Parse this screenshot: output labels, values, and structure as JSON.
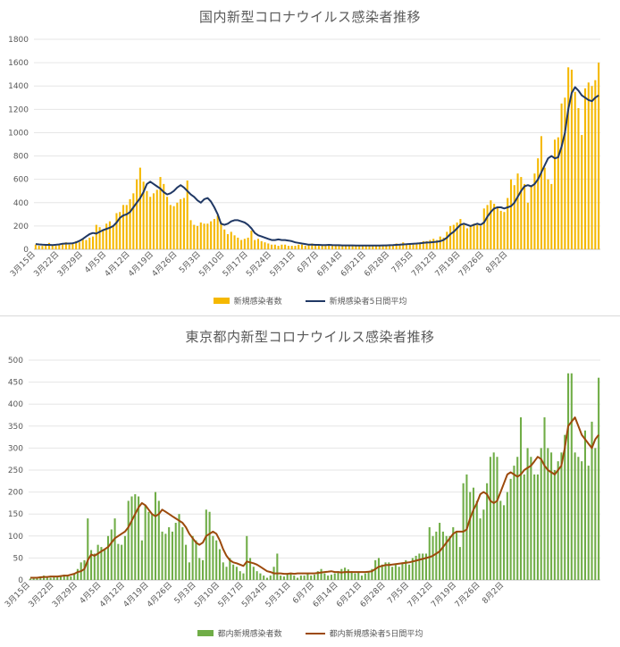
{
  "chart_data": [
    {
      "type": "bar",
      "title": "国内新型コロナウイルス感染者推移",
      "x_tick_labels": [
        "3月15日",
        "3月22日",
        "3月29日",
        "4月5日",
        "4月12日",
        "4月19日",
        "4月26日",
        "5月3日",
        "5月10日",
        "5月17日",
        "5月24日",
        "5月31日",
        "6月7日",
        "6月14日",
        "6月21日",
        "6月28日",
        "7月5日",
        "7月12日",
        "7月19日",
        "7月26日",
        "8月2日"
      ],
      "y_ticks": [
        0,
        200,
        400,
        600,
        800,
        1000,
        1200,
        1400,
        1600,
        1800
      ],
      "ylim": [
        0,
        1800
      ],
      "legend_position": "bottom",
      "grid": true,
      "colors": {
        "bars": "#f5b800",
        "line": "#203864"
      },
      "series": [
        {
          "name": "新規感染者数",
          "kind": "bar",
          "values": [
            40,
            30,
            30,
            45,
            55,
            35,
            30,
            40,
            50,
            60,
            40,
            50,
            70,
            60,
            90,
            80,
            100,
            110,
            210,
            190,
            170,
            220,
            240,
            200,
            310,
            320,
            380,
            380,
            430,
            480,
            600,
            700,
            580,
            500,
            450,
            480,
            510,
            620,
            560,
            450,
            380,
            370,
            400,
            430,
            440,
            590,
            250,
            210,
            200,
            230,
            220,
            220,
            240,
            260,
            290,
            230,
            170,
            130,
            150,
            120,
            100,
            80,
            90,
            100,
            160,
            80,
            90,
            70,
            60,
            50,
            40,
            40,
            30,
            40,
            40,
            30,
            30,
            30,
            40,
            40,
            30,
            40,
            50,
            40,
            30,
            40,
            40,
            40,
            30,
            30,
            30,
            30,
            30,
            30,
            30,
            30,
            30,
            30,
            30,
            30,
            30,
            30,
            30,
            30,
            40,
            40,
            40,
            50,
            40,
            60,
            50,
            40,
            50,
            50,
            60,
            70,
            70,
            80,
            90,
            80,
            110,
            100,
            150,
            200,
            210,
            230,
            260,
            210,
            180,
            200,
            220,
            210,
            200,
            350,
            380,
            420,
            390,
            360,
            330,
            320,
            440,
            600,
            550,
            650,
            620,
            560,
            400,
            540,
            650,
            780,
            970,
            700,
            600,
            560,
            940,
            960,
            1250,
            1300,
            1560,
            1540,
            1350,
            1210,
            980,
            1380,
            1430,
            1400,
            1450,
            1600
          ]
        },
        {
          "name": "新規感染者5日間平均",
          "kind": "line",
          "values": [
            45,
            42,
            40,
            38,
            38,
            37,
            39,
            42,
            48,
            50,
            50,
            52,
            60,
            72,
            90,
            110,
            130,
            140,
            135,
            150,
            165,
            175,
            185,
            200,
            230,
            270,
            290,
            300,
            320,
            360,
            400,
            440,
            490,
            560,
            580,
            560,
            540,
            520,
            490,
            470,
            480,
            500,
            530,
            550,
            530,
            500,
            470,
            450,
            420,
            400,
            430,
            440,
            410,
            360,
            300,
            220,
            210,
            220,
            240,
            250,
            250,
            240,
            230,
            210,
            180,
            140,
            120,
            110,
            100,
            90,
            80,
            80,
            85,
            80,
            80,
            75,
            70,
            60,
            55,
            50,
            45,
            40,
            40,
            38,
            38,
            36,
            36,
            38,
            36,
            35,
            35,
            34,
            34,
            34,
            34,
            33,
            33,
            33,
            33,
            33,
            33,
            33,
            33,
            34,
            34,
            35,
            36,
            38,
            40,
            42,
            44,
            46,
            48,
            50,
            52,
            55,
            58,
            60,
            62,
            65,
            70,
            80,
            100,
            130,
            150,
            180,
            210,
            220,
            210,
            200,
            210,
            220,
            210,
            230,
            280,
            320,
            350,
            360,
            360,
            350,
            360,
            370,
            400,
            450,
            500,
            540,
            550,
            540,
            560,
            600,
            660,
            720,
            780,
            800,
            780,
            790,
            880,
            1000,
            1200,
            1340,
            1390,
            1360,
            1320,
            1300,
            1280,
            1270,
            1300,
            1320
          ]
        }
      ]
    },
    {
      "type": "bar",
      "title": "東京都内新型コロナウイルス感染者推移",
      "x_tick_labels": [
        "3月15日",
        "3月22日",
        "3月29日",
        "4月5日",
        "4月12日",
        "4月19日",
        "4月26日",
        "5月3日",
        "5月10日",
        "5月17日",
        "5月24日",
        "5月31日",
        "6月7日",
        "6月14日",
        "6月21日",
        "6月28日",
        "7月5日",
        "7月12日",
        "7月19日",
        "7月26日",
        "8月2日"
      ],
      "y_ticks": [
        0,
        50,
        100,
        150,
        200,
        250,
        300,
        350,
        400,
        450,
        500
      ],
      "ylim": [
        0,
        500
      ],
      "legend_position": "bottom",
      "grid": true,
      "colors": {
        "bars": "#70ad47",
        "line": "#9c4a0c"
      },
      "series": [
        {
          "name": "都内新規感染者数",
          "kind": "bar",
          "values": [
            3,
            5,
            5,
            8,
            10,
            8,
            5,
            7,
            6,
            10,
            12,
            10,
            8,
            15,
            25,
            40,
            45,
            140,
            68,
            60,
            80,
            75,
            70,
            100,
            115,
            140,
            82,
            80,
            100,
            180,
            190,
            195,
            190,
            90,
            170,
            155,
            150,
            200,
            180,
            110,
            105,
            120,
            110,
            130,
            150,
            120,
            80,
            40,
            100,
            90,
            50,
            45,
            160,
            155,
            100,
            90,
            70,
            40,
            30,
            50,
            35,
            30,
            20,
            15,
            100,
            50,
            30,
            20,
            15,
            10,
            5,
            10,
            30,
            60,
            10,
            8,
            15,
            15,
            10,
            5,
            10,
            10,
            15,
            10,
            12,
            20,
            25,
            15,
            10,
            12,
            15,
            20,
            25,
            28,
            24,
            20,
            15,
            18,
            10,
            15,
            20,
            25,
            45,
            50,
            35,
            40,
            40,
            30,
            35,
            30,
            40,
            45,
            35,
            50,
            55,
            60,
            60,
            60,
            120,
            100,
            110,
            130,
            110,
            100,
            100,
            120,
            110,
            75,
            220,
            240,
            200,
            210,
            180,
            140,
            160,
            220,
            280,
            290,
            280,
            180,
            170,
            200,
            230,
            260,
            280,
            370,
            240,
            300,
            280,
            240,
            240,
            300,
            370,
            300,
            290,
            250,
            270,
            290,
            330,
            470,
            470,
            290,
            280,
            270,
            340,
            260,
            360,
            300,
            460
          ]
        },
        {
          "name": "都内新規感染者5日間平均",
          "kind": "line",
          "values": [
            5,
            5,
            5,
            6,
            7,
            7,
            8,
            8,
            8,
            9,
            10,
            10,
            12,
            14,
            18,
            20,
            25,
            45,
            58,
            55,
            60,
            65,
            70,
            75,
            85,
            95,
            100,
            105,
            110,
            120,
            135,
            150,
            165,
            175,
            170,
            160,
            150,
            145,
            150,
            160,
            155,
            150,
            145,
            140,
            135,
            130,
            120,
            105,
            95,
            85,
            80,
            85,
            100,
            105,
            110,
            105,
            90,
            70,
            55,
            45,
            40,
            38,
            35,
            32,
            42,
            40,
            38,
            35,
            30,
            25,
            20,
            18,
            15,
            15,
            15,
            14,
            14,
            15,
            14,
            15,
            15,
            15,
            15,
            15,
            15,
            16,
            17,
            18,
            19,
            20,
            18,
            18,
            17,
            18,
            18,
            18,
            18,
            18,
            18,
            18,
            19,
            20,
            25,
            30,
            32,
            34,
            34,
            35,
            36,
            37,
            38,
            39,
            40,
            42,
            44,
            46,
            48,
            50,
            52,
            55,
            60,
            65,
            75,
            85,
            95,
            105,
            110,
            110,
            110,
            115,
            140,
            160,
            175,
            195,
            200,
            195,
            180,
            175,
            180,
            200,
            220,
            240,
            245,
            240,
            235,
            240,
            250,
            255,
            260,
            270,
            280,
            275,
            260,
            250,
            245,
            240,
            250,
            260,
            300,
            350,
            360,
            370,
            350,
            330,
            320,
            310,
            300,
            320,
            330
          ]
        }
      ]
    }
  ]
}
